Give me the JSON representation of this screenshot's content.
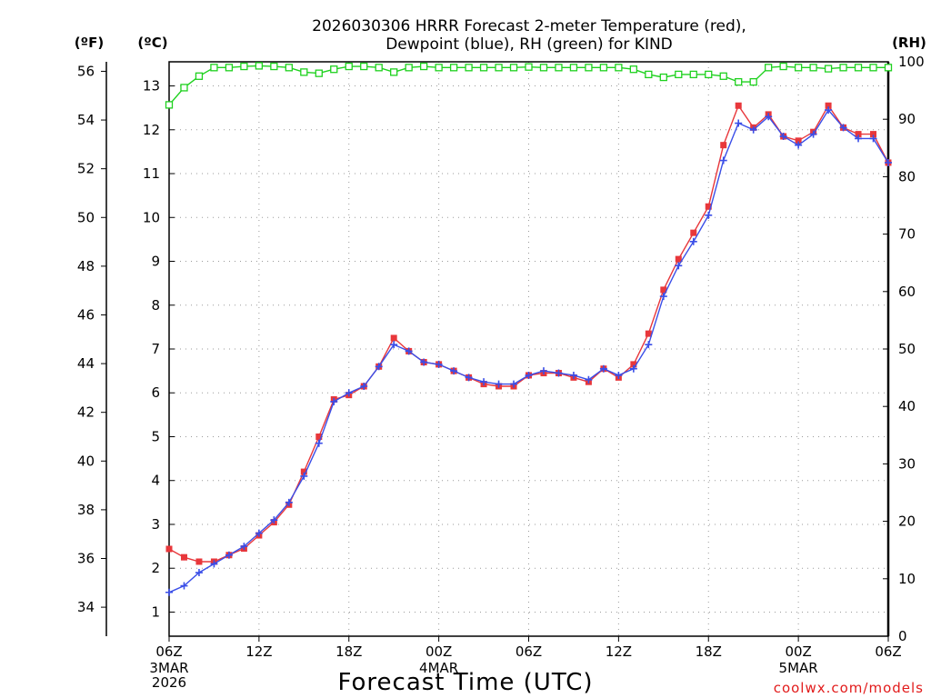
{
  "chart_data": {
    "type": "line",
    "title": [
      "2026030306 HRRR Forecast 2-meter Temperature (red),",
      "Dewpoint (blue), RH (green) for KIND"
    ],
    "xlabel": "Forecast Time (UTC)",
    "left_axis_outer_unit": "(ºF)",
    "left_axis_inner_unit": "(ºC)",
    "right_axis_unit": "(RH)",
    "credit": "coolwx.com/models",
    "x_tick_labels": [
      "06Z",
      "12Z",
      "18Z",
      "00Z",
      "06Z",
      "12Z",
      "18Z",
      "00Z",
      "06Z"
    ],
    "x_date_labels": [
      {
        "hour_index": 0,
        "lines": [
          "3MAR",
          "2026"
        ]
      },
      {
        "hour_index": 18,
        "lines": [
          "4MAR"
        ]
      },
      {
        "hour_index": 42,
        "lines": [
          "5MAR"
        ]
      }
    ],
    "x_hours_range": [
      0,
      48
    ],
    "y_celsius_range": [
      0.45,
      13.55
    ],
    "y_celsius_ticks": [
      1,
      2,
      3,
      4,
      5,
      6,
      7,
      8,
      9,
      10,
      11,
      12,
      13
    ],
    "y_fahrenheit_ticks": [
      34,
      36,
      38,
      40,
      42,
      44,
      46,
      48,
      50,
      52,
      54,
      56
    ],
    "y_rh_range": [
      0,
      100
    ],
    "y_rh_ticks": [
      0,
      10,
      20,
      30,
      40,
      50,
      60,
      70,
      80,
      90,
      100
    ],
    "grid": true,
    "series": [
      {
        "name": "Temperature",
        "color": "#e8373b",
        "marker": "square",
        "axis": "celsius",
        "values": [
          2.44,
          2.25,
          2.15,
          2.15,
          2.3,
          2.45,
          2.75,
          3.05,
          3.45,
          4.2,
          5.0,
          5.85,
          5.95,
          6.15,
          6.6,
          7.25,
          6.95,
          6.7,
          6.65,
          6.5,
          6.35,
          6.2,
          6.15,
          6.15,
          6.4,
          6.45,
          6.45,
          6.35,
          6.25,
          6.55,
          6.35,
          6.65,
          7.35,
          8.35,
          9.05,
          9.65,
          10.25,
          11.65,
          12.55,
          12.05,
          12.35,
          11.85,
          11.75,
          11.95,
          12.55,
          12.05,
          11.9,
          11.9,
          11.25
        ]
      },
      {
        "name": "Dewpoint",
        "color": "#3a4ee8",
        "marker": "plus",
        "axis": "celsius",
        "values": [
          1.45,
          1.6,
          1.9,
          2.1,
          2.3,
          2.5,
          2.8,
          3.1,
          3.5,
          4.1,
          4.85,
          5.8,
          6.0,
          6.15,
          6.6,
          7.1,
          6.95,
          6.7,
          6.65,
          6.5,
          6.35,
          6.25,
          6.2,
          6.2,
          6.4,
          6.5,
          6.45,
          6.4,
          6.3,
          6.55,
          6.4,
          6.55,
          7.1,
          8.2,
          8.9,
          9.45,
          10.05,
          11.3,
          12.15,
          12.0,
          12.3,
          11.85,
          11.65,
          11.9,
          12.45,
          12.05,
          11.8,
          11.8,
          11.25
        ]
      },
      {
        "name": "RH",
        "color": "#1ed11e",
        "marker": "open-square",
        "axis": "rh",
        "values": [
          92.5,
          95.5,
          97.5,
          99.0,
          99.0,
          99.2,
          99.3,
          99.2,
          99.0,
          98.2,
          98.0,
          98.7,
          99.2,
          99.2,
          99.0,
          98.2,
          99.0,
          99.2,
          99.0,
          99.0,
          99.0,
          99.0,
          99.0,
          99.0,
          99.1,
          99.0,
          99.0,
          99.0,
          99.0,
          99.0,
          99.0,
          98.7,
          97.8,
          97.3,
          97.8,
          97.8,
          97.8,
          97.5,
          96.5,
          96.5,
          99.0,
          99.2,
          99.0,
          99.0,
          98.8,
          99.0,
          99.0,
          99.0,
          99.0
        ]
      }
    ]
  }
}
